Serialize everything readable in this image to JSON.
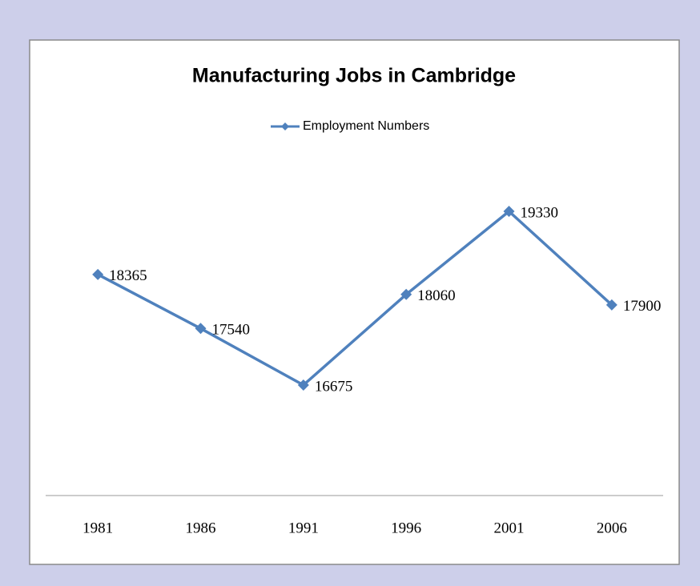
{
  "chart_data": {
    "type": "line",
    "title": "Manufacturing Jobs in Cambridge",
    "categories": [
      "1981",
      "1986",
      "1991",
      "1996",
      "2001",
      "2006"
    ],
    "series": [
      {
        "name": "Employment Numbers",
        "color": "#4f81bd",
        "values": [
          18365,
          17540,
          16675,
          18060,
          19330,
          17900
        ]
      }
    ],
    "legend": "top",
    "grid": false
  }
}
